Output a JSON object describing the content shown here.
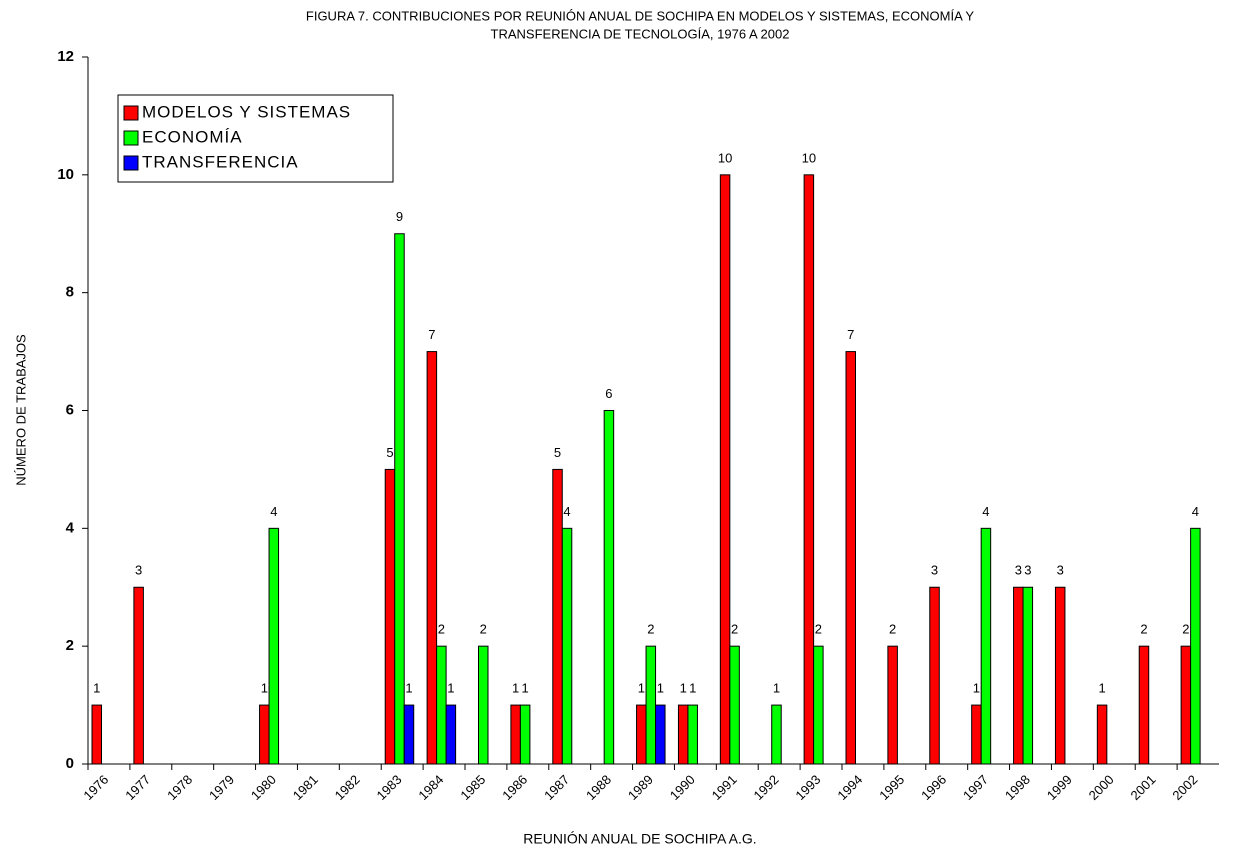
{
  "chart_data": {
    "type": "bar",
    "title": [
      "FIGURA 7. CONTRIBUCIONES POR REUNIÓN ANUAL DE SOCHIPA EN MODELOS Y SISTEMAS, ECONOMÍA Y",
      "TRANSFERENCIA DE TECNOLOGÍA, 1976 A 2002"
    ],
    "x_label": "REUNIÓN ANUAL DE SOCHIPA A.G.",
    "y_label": "NÚMERO DE TRABAJOS",
    "categories": [
      "1976",
      "1977",
      "1978",
      "1979",
      "1980",
      "1981",
      "1982",
      "1983",
      "1984",
      "1985",
      "1986",
      "1987",
      "1988",
      "1989",
      "1990",
      "1991",
      "1992",
      "1993",
      "1994",
      "1995",
      "1996",
      "1997",
      "1998",
      "1999",
      "2000",
      "2001",
      "2002"
    ],
    "series": [
      {
        "name": "MODELOS Y SISTEMAS",
        "color": "#ff0000",
        "values": [
          1,
          3,
          null,
          null,
          1,
          null,
          null,
          5,
          7,
          null,
          1,
          5,
          null,
          1,
          1,
          10,
          null,
          10,
          7,
          2,
          3,
          1,
          3,
          3,
          1,
          2,
          2
        ]
      },
      {
        "name": "ECONOMÍA",
        "color": "#00ff00",
        "values": [
          null,
          null,
          null,
          null,
          4,
          null,
          null,
          9,
          2,
          2,
          1,
          4,
          6,
          2,
          1,
          2,
          1,
          2,
          null,
          null,
          null,
          4,
          3,
          null,
          null,
          null,
          4
        ]
      },
      {
        "name": "TRANSFERENCIA",
        "color": "#0000ff",
        "values": [
          null,
          null,
          null,
          null,
          null,
          null,
          null,
          1,
          1,
          null,
          null,
          null,
          null,
          1,
          null,
          null,
          null,
          null,
          null,
          null,
          null,
          null,
          null,
          null,
          null,
          null,
          null
        ]
      }
    ],
    "ylim": [
      0,
      12
    ],
    "yticks": [
      0,
      2,
      4,
      6,
      8,
      10,
      12
    ],
    "grid": false,
    "legend": "top-left"
  }
}
